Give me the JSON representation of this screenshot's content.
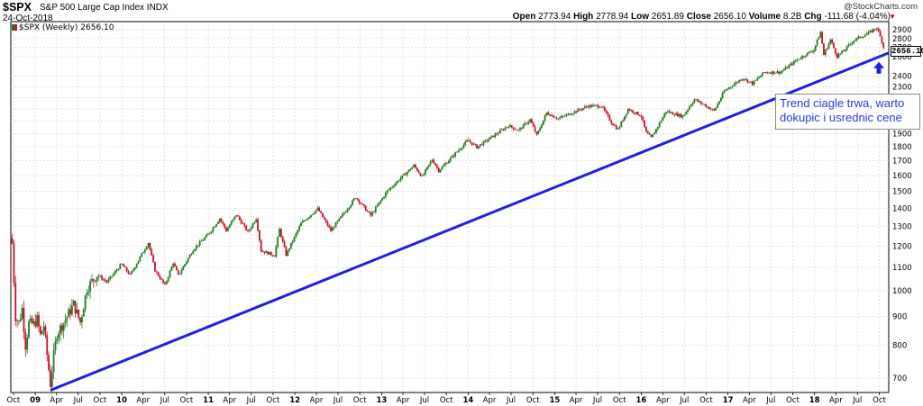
{
  "header": {
    "symbol": "$SPX",
    "name": "S&P 500 Large Cap Index",
    "exchange": "INDX",
    "date": "24-Oct-2018",
    "copyright": "@StockCharts.com",
    "open_label": "Open",
    "open": "2773.94",
    "high_label": "High",
    "high": "2778.94",
    "low_label": "Low",
    "low": "2651.89",
    "close_label": "Close",
    "close": "2656.10",
    "volume_label": "Volume",
    "volume": "8.2B",
    "chg_label": "Chg",
    "chg": "-111.68 (-4.04%)",
    "chg_marker": "▼"
  },
  "legend": {
    "label": "$SPX (Weekly) 2656.10"
  },
  "annotation": {
    "text": "Trend ciagle trwa, warto dokupic i usrednic cene",
    "color": "#2a3ad8"
  },
  "price_label": "2656.10",
  "colors": {
    "up": "#1f7a1f",
    "down": "#c8102e",
    "trendline": "#1f1fe0",
    "grid": "#cfcfcf"
  },
  "chart_data": {
    "type": "candlestick",
    "interval": "weekly",
    "scale": "log",
    "ylim": [
      660,
      3000
    ],
    "y_ticks": [
      700,
      800,
      900,
      1000,
      1100,
      1200,
      1300,
      1400,
      1500,
      1600,
      1700,
      1800,
      1900,
      2000,
      2100,
      2200,
      2300,
      2400,
      2600,
      2700,
      2800,
      2900
    ],
    "x_range": [
      "2008-09-20",
      "2018-11-10"
    ],
    "x_ticks": [
      {
        "date": "2008-10-01",
        "label": "Oct",
        "year": false
      },
      {
        "date": "2009-01-01",
        "label": "09",
        "year": true
      },
      {
        "date": "2009-04-01",
        "label": "Apr",
        "year": false
      },
      {
        "date": "2009-07-01",
        "label": "Jul",
        "year": false
      },
      {
        "date": "2009-10-01",
        "label": "Oct",
        "year": false
      },
      {
        "date": "2010-01-01",
        "label": "10",
        "year": true
      },
      {
        "date": "2010-04-01",
        "label": "Apr",
        "year": false
      },
      {
        "date": "2010-07-01",
        "label": "Jul",
        "year": false
      },
      {
        "date": "2010-10-01",
        "label": "Oct",
        "year": false
      },
      {
        "date": "2011-01-01",
        "label": "11",
        "year": true
      },
      {
        "date": "2011-04-01",
        "label": "Apr",
        "year": false
      },
      {
        "date": "2011-07-01",
        "label": "Jul",
        "year": false
      },
      {
        "date": "2011-10-01",
        "label": "Oct",
        "year": false
      },
      {
        "date": "2012-01-01",
        "label": "12",
        "year": true
      },
      {
        "date": "2012-04-01",
        "label": "Apr",
        "year": false
      },
      {
        "date": "2012-07-01",
        "label": "Jul",
        "year": false
      },
      {
        "date": "2012-10-01",
        "label": "Oct",
        "year": false
      },
      {
        "date": "2013-01-01",
        "label": "13",
        "year": true
      },
      {
        "date": "2013-04-01",
        "label": "Apr",
        "year": false
      },
      {
        "date": "2013-07-01",
        "label": "Jul",
        "year": false
      },
      {
        "date": "2013-10-01",
        "label": "Oct",
        "year": false
      },
      {
        "date": "2014-01-01",
        "label": "14",
        "year": true
      },
      {
        "date": "2014-04-01",
        "label": "Apr",
        "year": false
      },
      {
        "date": "2014-07-01",
        "label": "Jul",
        "year": false
      },
      {
        "date": "2014-10-01",
        "label": "Oct",
        "year": false
      },
      {
        "date": "2015-01-01",
        "label": "15",
        "year": true
      },
      {
        "date": "2015-04-01",
        "label": "Apr",
        "year": false
      },
      {
        "date": "2015-07-01",
        "label": "Jul",
        "year": false
      },
      {
        "date": "2015-10-01",
        "label": "Oct",
        "year": false
      },
      {
        "date": "2016-01-01",
        "label": "16",
        "year": true
      },
      {
        "date": "2016-04-01",
        "label": "Apr",
        "year": false
      },
      {
        "date": "2016-07-01",
        "label": "Jul",
        "year": false
      },
      {
        "date": "2016-10-01",
        "label": "Oct",
        "year": false
      },
      {
        "date": "2017-01-01",
        "label": "17",
        "year": true
      },
      {
        "date": "2017-04-01",
        "label": "Apr",
        "year": false
      },
      {
        "date": "2017-07-01",
        "label": "Jul",
        "year": false
      },
      {
        "date": "2017-10-01",
        "label": "Oct",
        "year": false
      },
      {
        "date": "2018-01-01",
        "label": "18",
        "year": true
      },
      {
        "date": "2018-04-01",
        "label": "Apr",
        "year": false
      },
      {
        "date": "2018-07-01",
        "label": "Jul",
        "year": false
      },
      {
        "date": "2018-10-01",
        "label": "Oct",
        "year": false
      }
    ],
    "close_path": [
      [
        "2008-09-26",
        1213
      ],
      [
        "2008-10-10",
        900
      ],
      [
        "2008-10-24",
        877
      ],
      [
        "2008-11-07",
        930
      ],
      [
        "2008-11-21",
        800
      ],
      [
        "2008-12-05",
        876
      ],
      [
        "2008-12-26",
        872
      ],
      [
        "2009-01-09",
        890
      ],
      [
        "2009-01-23",
        832
      ],
      [
        "2009-02-06",
        868
      ],
      [
        "2009-02-20",
        770
      ],
      [
        "2009-03-06",
        683
      ],
      [
        "2009-03-20",
        768
      ],
      [
        "2009-04-03",
        842
      ],
      [
        "2009-05-01",
        877
      ],
      [
        "2009-06-12",
        946
      ],
      [
        "2009-07-10",
        879
      ],
      [
        "2009-08-07",
        1010
      ],
      [
        "2009-09-18",
        1068
      ],
      [
        "2009-10-30",
        1036
      ],
      [
        "2009-12-31",
        1115
      ],
      [
        "2010-02-05",
        1066
      ],
      [
        "2010-04-23",
        1217
      ],
      [
        "2010-05-21",
        1087
      ],
      [
        "2010-07-02",
        1022
      ],
      [
        "2010-08-06",
        1122
      ],
      [
        "2010-08-27",
        1064
      ],
      [
        "2010-10-29",
        1183
      ],
      [
        "2010-12-31",
        1258
      ],
      [
        "2011-02-18",
        1343
      ],
      [
        "2011-03-18",
        1279
      ],
      [
        "2011-04-29",
        1364
      ],
      [
        "2011-06-17",
        1271
      ],
      [
        "2011-07-22",
        1345
      ],
      [
        "2011-08-12",
        1178
      ],
      [
        "2011-10-07",
        1155
      ],
      [
        "2011-10-28",
        1285
      ],
      [
        "2011-11-25",
        1158
      ],
      [
        "2012-01-27",
        1316
      ],
      [
        "2012-04-06",
        1398
      ],
      [
        "2012-06-01",
        1278
      ],
      [
        "2012-09-14",
        1465
      ],
      [
        "2012-11-16",
        1359
      ],
      [
        "2013-01-25",
        1503
      ],
      [
        "2013-05-17",
        1667
      ],
      [
        "2013-06-21",
        1592
      ],
      [
        "2013-08-02",
        1709
      ],
      [
        "2013-08-30",
        1633
      ],
      [
        "2013-12-31",
        1848
      ],
      [
        "2014-02-07",
        1797
      ],
      [
        "2014-04-04",
        1865
      ],
      [
        "2014-06-20",
        1962
      ],
      [
        "2014-08-01",
        1925
      ],
      [
        "2014-09-19",
        2010
      ],
      [
        "2014-10-17",
        1886
      ],
      [
        "2014-11-28",
        2067
      ],
      [
        "2015-01-16",
        2019
      ],
      [
        "2015-05-22",
        2126
      ],
      [
        "2015-07-17",
        2126
      ],
      [
        "2015-08-28",
        1988
      ],
      [
        "2015-09-25",
        1931
      ],
      [
        "2015-11-06",
        2099
      ],
      [
        "2015-12-31",
        2044
      ],
      [
        "2016-01-22",
        1906
      ],
      [
        "2016-02-12",
        1865
      ],
      [
        "2016-04-15",
        2080
      ],
      [
        "2016-06-24",
        2037
      ],
      [
        "2016-08-12",
        2184
      ],
      [
        "2016-11-04",
        2085
      ],
      [
        "2016-12-16",
        2258
      ],
      [
        "2017-03-03",
        2383
      ],
      [
        "2017-04-14",
        2329
      ],
      [
        "2017-06-02",
        2439
      ],
      [
        "2017-08-11",
        2441
      ],
      [
        "2017-10-27",
        2581
      ],
      [
        "2017-12-29",
        2674
      ],
      [
        "2018-01-26",
        2873
      ],
      [
        "2018-02-09",
        2620
      ],
      [
        "2018-03-09",
        2786
      ],
      [
        "2018-04-06",
        2604
      ],
      [
        "2018-05-04",
        2663
      ],
      [
        "2018-06-15",
        2780
      ],
      [
        "2018-08-24",
        2874
      ],
      [
        "2018-09-21",
        2930
      ],
      [
        "2018-10-12",
        2767
      ],
      [
        "2018-10-24",
        2656
      ]
    ],
    "trendline": [
      [
        "2009-03-06",
        666
      ],
      [
        "2018-11-10",
        2640
      ]
    ],
    "last_close": 2656.1
  }
}
